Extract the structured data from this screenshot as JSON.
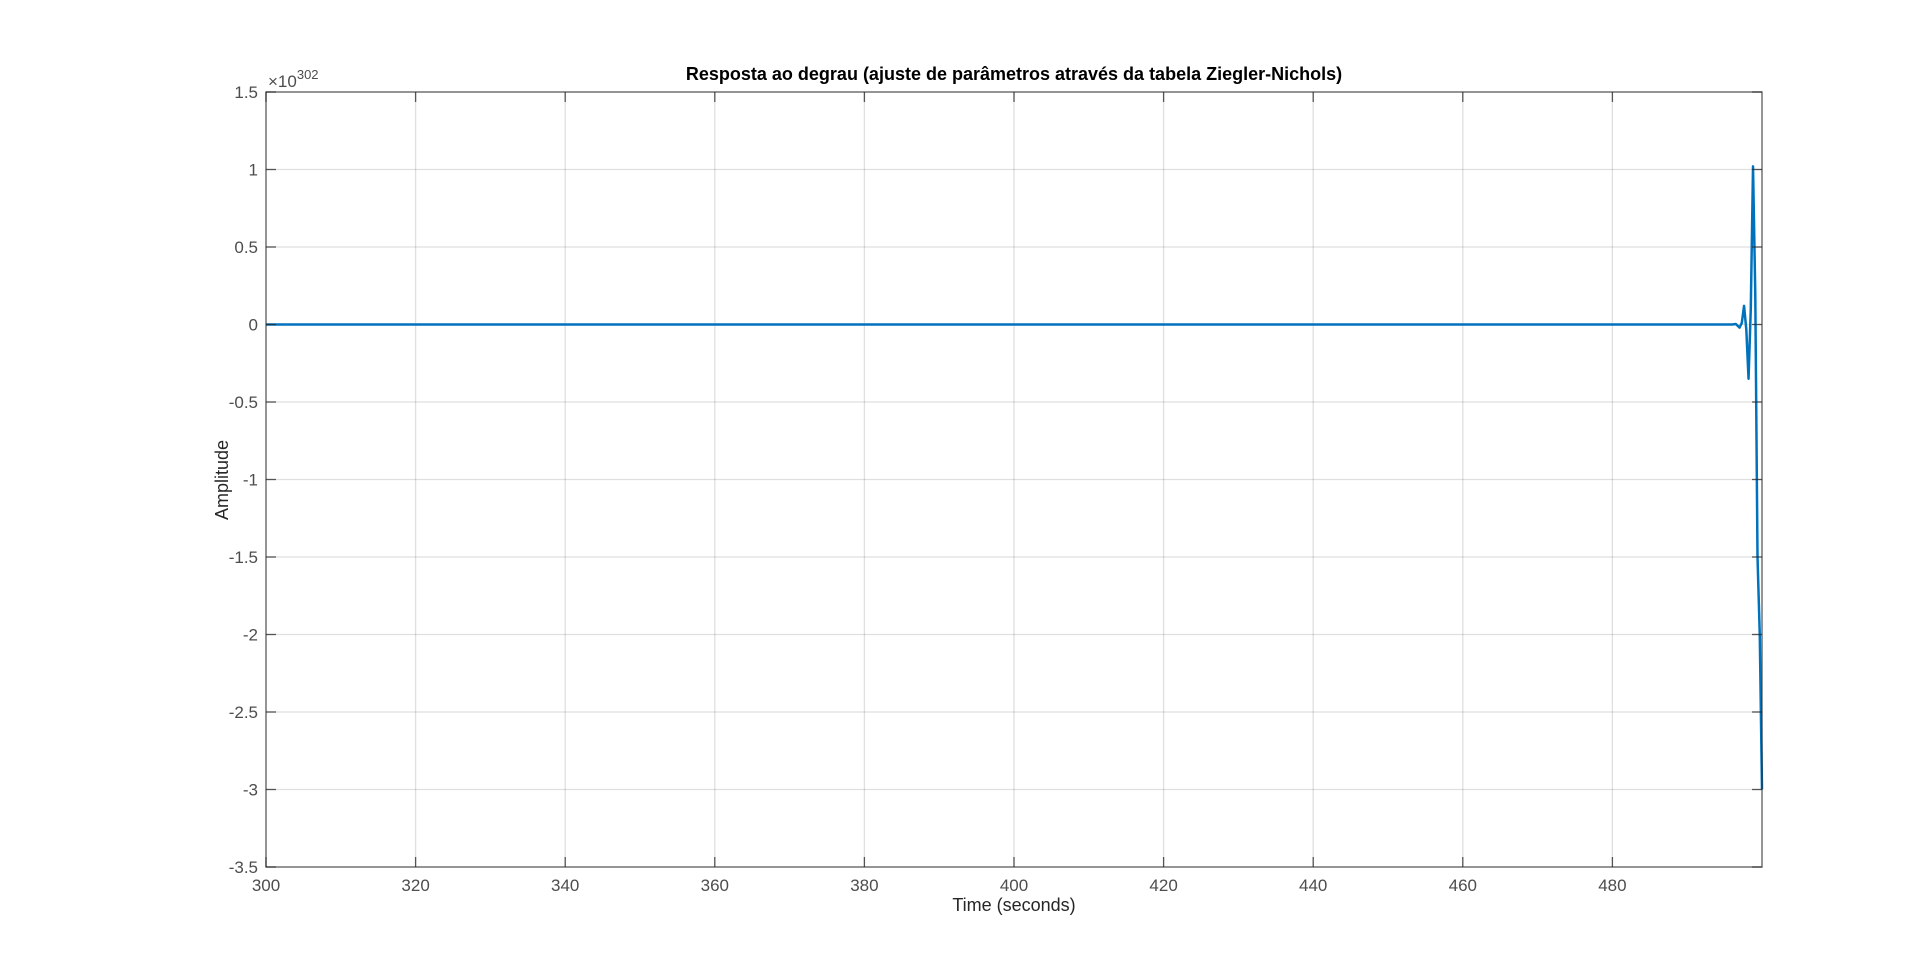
{
  "chart_data": {
    "type": "line",
    "title": "Resposta ao degrau (ajuste de parâmetros através da tabela Ziegler-Nichols)",
    "xlabel": "Time (seconds)",
    "ylabel": "Amplitude",
    "xlim": [
      300,
      500
    ],
    "ylim": [
      -3.5,
      1.5
    ],
    "y_exponent": {
      "prefix": "×10",
      "power": "302"
    },
    "x_ticks": [
      300,
      320,
      340,
      360,
      380,
      400,
      420,
      440,
      460,
      480
    ],
    "x_tick_labels": [
      "300",
      "320",
      "340",
      "360",
      "380",
      "400",
      "420",
      "440",
      "460",
      "480"
    ],
    "y_ticks": [
      1.5,
      1,
      0.5,
      0,
      -0.5,
      -1,
      -1.5,
      -2,
      -2.5,
      -3,
      -3.5
    ],
    "y_tick_labels": [
      "1.5",
      "1",
      "0.5",
      "0",
      "-0.5",
      "-1",
      "-1.5",
      "-2",
      "-2.5",
      "-3",
      "-3.5"
    ],
    "grid": true,
    "line_color": "#0072bd",
    "series": [
      {
        "x": [
          300,
          496.0,
          496.5,
          497.0,
          497.3,
          497.6,
          497.9,
          498.2,
          498.5,
          498.8,
          499.1,
          499.4,
          499.7,
          500.0
        ],
        "values": [
          0,
          0,
          0.003,
          -0.02,
          0.01,
          0.12,
          -0.03,
          -0.35,
          0.1,
          1.02,
          0.2,
          -1.5,
          -2.0,
          -3.0
        ]
      }
    ]
  }
}
